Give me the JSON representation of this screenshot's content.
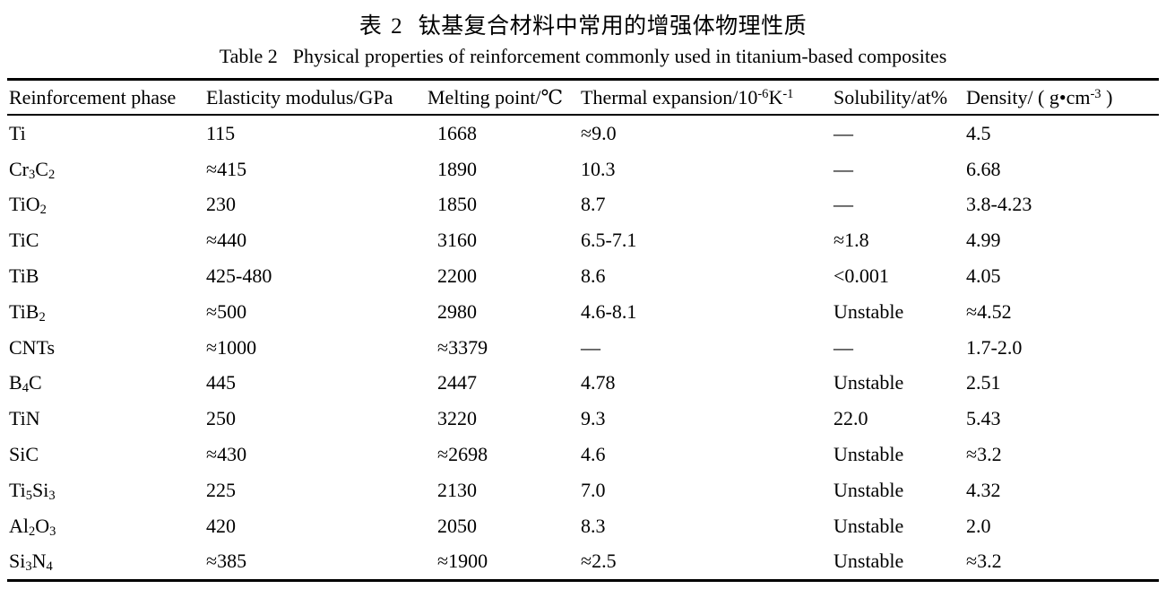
{
  "caption_zh": {
    "label": "表 2",
    "text": "钛基复合材料中常用的增强体物理性质"
  },
  "caption_en": {
    "label": "Table 2",
    "text": "Physical properties of reinforcement commonly used in titanium-based composites"
  },
  "table": {
    "columns": [
      {
        "key": "reinforcement-phase",
        "label": "Reinforcement phase"
      },
      {
        "key": "elasticity-modulus",
        "label": "Elasticity modulus/GPa"
      },
      {
        "key": "melting-point",
        "label": "Melting point/℃"
      },
      {
        "key": "thermal-expansion",
        "label": "Thermal expansion/10^{-6}K^{-1}"
      },
      {
        "key": "solubility",
        "label": "Solubility/at%"
      },
      {
        "key": "density",
        "label": "Density/ ( g•cm^{-3} )"
      }
    ],
    "rows": [
      [
        "Ti",
        "115",
        "1668",
        "≈9.0",
        "—",
        "4.5"
      ],
      [
        "Cr_{3}C_{2}",
        "≈415",
        "1890",
        "10.3",
        "—",
        "6.68"
      ],
      [
        "TiO_{2}",
        "230",
        "1850",
        "8.7",
        "—",
        "3.8-4.23"
      ],
      [
        "TiC",
        "≈440",
        "3160",
        "6.5-7.1",
        "≈1.8",
        "4.99"
      ],
      [
        "TiB",
        "425-480",
        "2200",
        "8.6",
        "<0.001",
        "4.05"
      ],
      [
        "TiB_{2}",
        "≈500",
        "2980",
        "4.6-8.1",
        "Unstable",
        "≈4.52"
      ],
      [
        "CNTs",
        "≈1000",
        "≈3379",
        "—",
        "—",
        "1.7-2.0"
      ],
      [
        "B_{4}C",
        "445",
        "2447",
        "4.78",
        "Unstable",
        "2.51"
      ],
      [
        "TiN",
        "250",
        "3220",
        "9.3",
        "22.0",
        "5.43"
      ],
      [
        "SiC",
        "≈430",
        "≈2698",
        "4.6",
        "Unstable",
        "≈3.2"
      ],
      [
        "Ti_{5}Si_{3}",
        "225",
        "2130",
        "7.0",
        "Unstable",
        "4.32"
      ],
      [
        "Al_{2}O_{3}",
        "420",
        "2050",
        "8.3",
        "Unstable",
        "2.0"
      ],
      [
        "Si_{3}N_{4}",
        "≈385",
        "≈1900",
        "≈2.5",
        "Unstable",
        "≈3.2"
      ]
    ]
  }
}
